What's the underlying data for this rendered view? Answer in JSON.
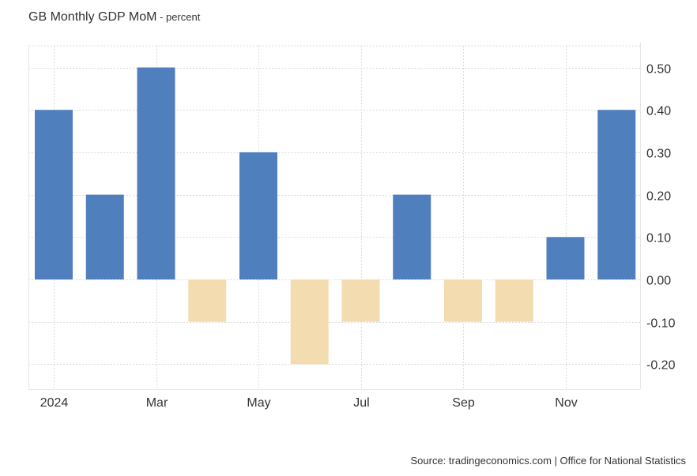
{
  "header": {
    "title": "GB Monthly GDP MoM",
    "unit_suffix": " - percent"
  },
  "footer": {
    "source": "Source: tradingeconomics.com | Office for National Statistics"
  },
  "colors": {
    "positive": "#4f7fbd",
    "negative": "#f3ddb0",
    "grid": "#dcdcdc",
    "text": "#333333"
  },
  "chart_data": {
    "type": "bar",
    "title": "GB Monthly GDP MoM - percent",
    "xlabel": "",
    "ylabel": "percent",
    "categories": [
      "Jan 2024",
      "Feb 2024",
      "Mar 2024",
      "Apr 2024",
      "May 2024",
      "Jun 2024",
      "Jul 2024",
      "Aug 2024",
      "Sep 2024",
      "Oct 2024",
      "Nov 2024",
      "Dec 2024"
    ],
    "values": [
      0.4,
      0.2,
      0.5,
      -0.1,
      0.3,
      -0.2,
      -0.1,
      0.2,
      -0.1,
      -0.1,
      0.1,
      0.4
    ],
    "x_tick_labels": [
      {
        "category_index": 0,
        "label": "2024"
      },
      {
        "category_index": 2,
        "label": "Mar"
      },
      {
        "category_index": 4,
        "label": "May"
      },
      {
        "category_index": 6,
        "label": "Jul"
      },
      {
        "category_index": 8,
        "label": "Sep"
      },
      {
        "category_index": 10,
        "label": "Nov"
      }
    ],
    "y_ticks": [
      0.5,
      0.4,
      0.3,
      0.2,
      0.1,
      0.0,
      -0.1,
      -0.2
    ],
    "y_tick_labels": [
      "0.50",
      "0.40",
      "0.30",
      "0.20",
      "0.10",
      "0.00",
      "-0.10",
      "-0.20"
    ],
    "ylim": [
      -0.25,
      0.55
    ],
    "y_axis_side": "right",
    "grid": true,
    "legend": "none"
  }
}
